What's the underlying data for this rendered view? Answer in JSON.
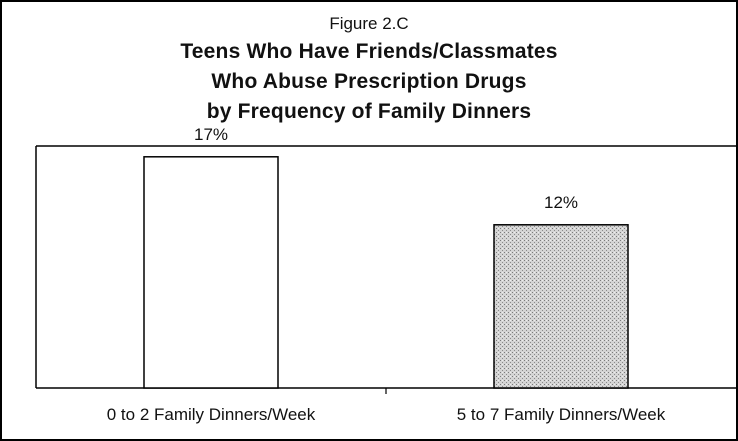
{
  "figure_label": "Figure 2.C",
  "title_lines": [
    "Teens Who Have Friends/Classmates",
    "Who Abuse Prescription Drugs",
    "by Frequency of Family Dinners"
  ],
  "chart_data": {
    "type": "bar",
    "title": "Teens Who Have Friends/Classmates Who Abuse Prescription Drugs by Frequency of Family Dinners",
    "categories": [
      "0 to 2 Family Dinners/Week",
      "5 to 7 Family Dinners/Week"
    ],
    "values": [
      17,
      12
    ],
    "data_labels": [
      "17%",
      "12%"
    ],
    "ylim": [
      0,
      20
    ],
    "grid": false,
    "legend": "none",
    "bar_fills": [
      "#ffffff",
      "#c8c8c8"
    ]
  }
}
